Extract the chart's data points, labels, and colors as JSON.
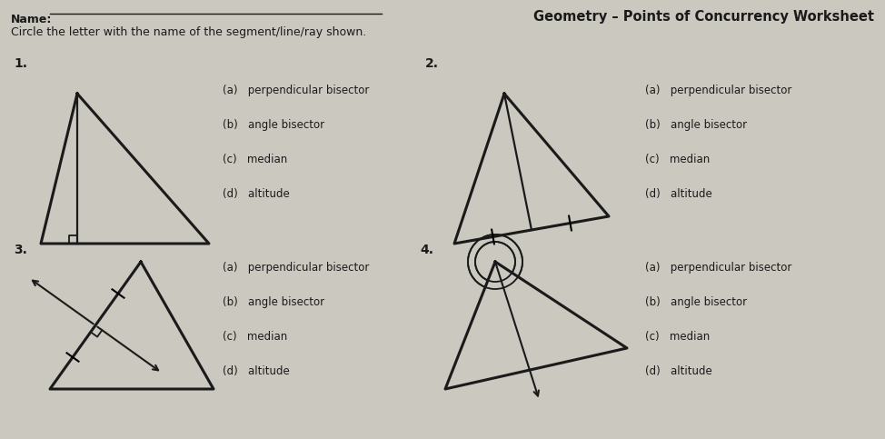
{
  "bg_color": "#cbc8c0",
  "title": "Geometry – Points of Concurrency Worksheet",
  "name_label": "Name:",
  "instruction": "Circle the letter with the name of the segment/line/ray shown.",
  "options": [
    "perpendicular bisector",
    "angle bisector",
    "median",
    "altitude"
  ],
  "lw_tri": 2.2,
  "lw_inner": 1.6
}
